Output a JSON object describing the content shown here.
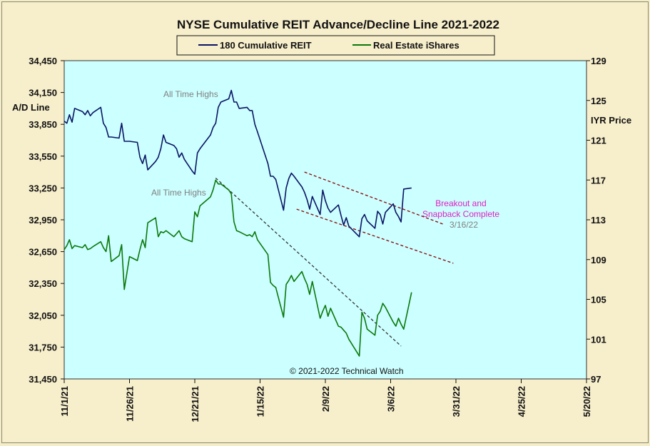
{
  "chart_data": {
    "type": "line",
    "title": "NYSE Cumulative  REIT Advance/Decline  Line 2021-2022",
    "y_left_label": "A/D Line",
    "y_right_label": "IYR Price",
    "y_left_range": [
      31450,
      34450
    ],
    "y_left_ticks": [
      "34,450",
      "34,150",
      "33,850",
      "33,550",
      "33,250",
      "32,950",
      "32,650",
      "32,350",
      "32,050",
      "31,750",
      "31,450"
    ],
    "y_right_range": [
      97,
      129
    ],
    "y_right_ticks": [
      "129",
      "125",
      "121",
      "117",
      "113",
      "109",
      "105",
      "101",
      "97"
    ],
    "x_range": [
      "2021-11-01",
      "2022-05-20"
    ],
    "x_ticks": [
      "11/1/21",
      "11/26/21",
      "12/21/21",
      "1/15/22",
      "2/9/22",
      "3/6/22",
      "3/31/22",
      "4/25/22",
      "5/20/22"
    ],
    "grid": false,
    "legend_position": "top-center",
    "copyright": "© 2021-2022  Technical  Watch",
    "annotations": [
      {
        "text": "All Time Highs",
        "series": "180 Cumulative REIT",
        "color": "#808080"
      },
      {
        "text": "All Time Highs",
        "series": "Real Estate iShares",
        "color": "#808080"
      },
      {
        "text": "Breakout and",
        "color": "#e020c0"
      },
      {
        "text": "Snapback Complete",
        "color": "#e020c0"
      },
      {
        "text": "3/16/22",
        "color": "#808080"
      }
    ],
    "trendlines": [
      {
        "series": "Real Estate iShares",
        "style": "dashed",
        "color": "#333333",
        "from": [
          "2021-12-29",
          117.2
        ],
        "to": [
          "2022-03-10",
          100.3
        ]
      },
      {
        "series": "180 Cumulative REIT",
        "style": "dashed",
        "color": "#8b0000",
        "from": [
          "2022-02-01",
          33400
        ],
        "to": [
          "2022-03-26",
          32910
        ]
      },
      {
        "series": "180 Cumulative REIT",
        "style": "dashed",
        "color": "#8b0000",
        "from": [
          "2022-01-29",
          33050
        ],
        "to": [
          "2022-03-30",
          32540
        ]
      }
    ],
    "series": [
      {
        "name": "180 Cumulative REIT",
        "axis": "left",
        "color": "#0a1464",
        "x": [
          "2021-11-01",
          "2021-11-02",
          "2021-11-03",
          "2021-11-04",
          "2021-11-05",
          "2021-11-08",
          "2021-11-09",
          "2021-11-10",
          "2021-11-11",
          "2021-11-12",
          "2021-11-15",
          "2021-11-16",
          "2021-11-17",
          "2021-11-18",
          "2021-11-19",
          "2021-11-22",
          "2021-11-23",
          "2021-11-24",
          "2021-11-26",
          "2021-11-29",
          "2021-11-30",
          "2021-12-01",
          "2021-12-02",
          "2021-12-03",
          "2021-12-06",
          "2021-12-07",
          "2021-12-08",
          "2021-12-09",
          "2021-12-10",
          "2021-12-13",
          "2021-12-14",
          "2021-12-15",
          "2021-12-16",
          "2021-12-17",
          "2021-12-20",
          "2021-12-21",
          "2021-12-22",
          "2021-12-23",
          "2021-12-27",
          "2021-12-28",
          "2021-12-29",
          "2021-12-30",
          "2021-12-31",
          "2022-01-03",
          "2022-01-04",
          "2022-01-05",
          "2022-01-06",
          "2022-01-07",
          "2022-01-10",
          "2022-01-11",
          "2022-01-12",
          "2022-01-13",
          "2022-01-14",
          "2022-01-18",
          "2022-01-19",
          "2022-01-20",
          "2022-01-21",
          "2022-01-24",
          "2022-01-25",
          "2022-01-26",
          "2022-01-27",
          "2022-01-28",
          "2022-01-31",
          "2022-02-01",
          "2022-02-02",
          "2022-02-03",
          "2022-02-04",
          "2022-02-07",
          "2022-02-08",
          "2022-02-09",
          "2022-02-10",
          "2022-02-11",
          "2022-02-14",
          "2022-02-15",
          "2022-02-16",
          "2022-02-17",
          "2022-02-18",
          "2022-02-22",
          "2022-02-23",
          "2022-02-24",
          "2022-02-25",
          "2022-02-28",
          "2022-03-01",
          "2022-03-02",
          "2022-03-03",
          "2022-03-04",
          "2022-03-07",
          "2022-03-08",
          "2022-03-09",
          "2022-03-10",
          "2022-03-11",
          "2022-03-14"
        ],
        "values": [
          33880,
          33860,
          33940,
          33870,
          34000,
          33970,
          33940,
          33980,
          33930,
          33960,
          34010,
          33860,
          33820,
          33730,
          33730,
          33720,
          33860,
          33690,
          33690,
          33680,
          33540,
          33480,
          33560,
          33420,
          33500,
          33540,
          33620,
          33750,
          33680,
          33650,
          33620,
          33540,
          33580,
          33520,
          33410,
          33380,
          33580,
          33620,
          33750,
          33820,
          33860,
          34010,
          34060,
          34090,
          34170,
          34060,
          34060,
          34000,
          34010,
          33980,
          33980,
          33850,
          33780,
          33480,
          33360,
          33360,
          33330,
          33040,
          33250,
          33340,
          33390,
          33360,
          33260,
          33210,
          33140,
          33050,
          33170,
          33000,
          33230,
          33130,
          33060,
          33020,
          33090,
          32990,
          32900,
          32970,
          32890,
          32790,
          32960,
          33000,
          32940,
          32870,
          33030,
          33000,
          32910,
          33020,
          33100,
          33020,
          32980,
          32930,
          33240,
          33250
        ]
      },
      {
        "name": "Real Estate iShares",
        "axis": "right",
        "color": "#0a780a",
        "x": [
          "2021-11-01",
          "2021-11-02",
          "2021-11-03",
          "2021-11-04",
          "2021-11-05",
          "2021-11-08",
          "2021-11-09",
          "2021-11-10",
          "2021-11-11",
          "2021-11-12",
          "2021-11-15",
          "2021-11-16",
          "2021-11-17",
          "2021-11-18",
          "2021-11-19",
          "2021-11-22",
          "2021-11-23",
          "2021-11-24",
          "2021-11-26",
          "2021-11-29",
          "2021-11-30",
          "2021-12-01",
          "2021-12-02",
          "2021-12-03",
          "2021-12-06",
          "2021-12-07",
          "2021-12-08",
          "2021-12-09",
          "2021-12-10",
          "2021-12-13",
          "2021-12-14",
          "2021-12-15",
          "2021-12-16",
          "2021-12-17",
          "2021-12-20",
          "2021-12-21",
          "2021-12-22",
          "2021-12-23",
          "2021-12-27",
          "2021-12-28",
          "2021-12-29",
          "2021-12-30",
          "2021-12-31",
          "2022-01-03",
          "2022-01-04",
          "2022-01-05",
          "2022-01-06",
          "2022-01-07",
          "2022-01-10",
          "2022-01-11",
          "2022-01-12",
          "2022-01-13",
          "2022-01-14",
          "2022-01-18",
          "2022-01-19",
          "2022-01-20",
          "2022-01-21",
          "2022-01-24",
          "2022-01-25",
          "2022-01-26",
          "2022-01-27",
          "2022-01-28",
          "2022-01-31",
          "2022-02-01",
          "2022-02-02",
          "2022-02-03",
          "2022-02-04",
          "2022-02-07",
          "2022-02-08",
          "2022-02-09",
          "2022-02-10",
          "2022-02-11",
          "2022-02-14",
          "2022-02-15",
          "2022-02-16",
          "2022-02-17",
          "2022-02-18",
          "2022-02-22",
          "2022-02-23",
          "2022-02-24",
          "2022-02-25",
          "2022-02-28",
          "2022-03-01",
          "2022-03-02",
          "2022-03-03",
          "2022-03-04",
          "2022-03-07",
          "2022-03-08",
          "2022-03-09",
          "2022-03-10",
          "2022-03-11",
          "2022-03-14"
        ],
        "values": [
          110.0,
          110.4,
          111.0,
          110.1,
          110.4,
          110.2,
          110.5,
          110.0,
          110.1,
          110.3,
          110.8,
          110.2,
          109.8,
          111.4,
          108.8,
          109.4,
          110.5,
          106.0,
          109.3,
          108.9,
          110.0,
          111.0,
          110.2,
          112.7,
          113.2,
          111.3,
          111.8,
          111.7,
          111.9,
          111.3,
          111.6,
          111.9,
          111.3,
          111.1,
          110.8,
          113.8,
          113.3,
          114.4,
          115.3,
          116.0,
          117.0,
          116.6,
          116.6,
          116.0,
          115.6,
          112.8,
          111.9,
          111.8,
          111.4,
          111.5,
          111.3,
          111.8,
          111.0,
          109.5,
          106.7,
          106.4,
          106.2,
          103.2,
          106.5,
          106.9,
          107.4,
          106.8,
          107.8,
          107.1,
          106.5,
          105.5,
          106.8,
          103.1,
          103.8,
          104.4,
          103.3,
          104.1,
          102.3,
          102.2,
          101.9,
          101.6,
          101.0,
          99.3,
          103.7,
          103.1,
          102.0,
          101.4,
          103.4,
          103.8,
          104.6,
          104.2,
          102.7,
          102.3,
          103.1,
          102.5,
          102.0,
          105.7
        ]
      }
    ]
  }
}
